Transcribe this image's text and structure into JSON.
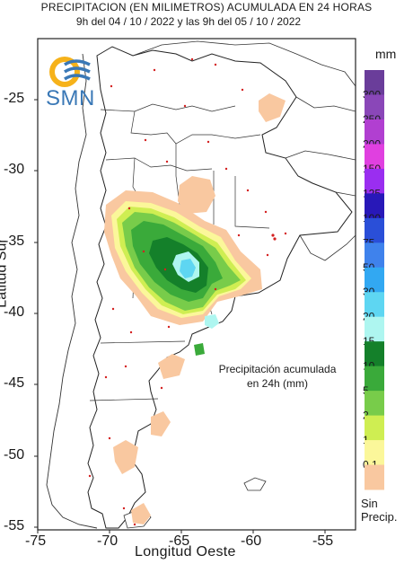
{
  "title_line1": "PRECIPITACION (EN MILIMETROS) ACUMULADA EN 24 HORAS",
  "title_line2": "9h del 04 / 10 / 2022  y las 9h del 05 / 10 / 2022",
  "agency_logo_text": "SMN",
  "annotation_line1": "Precipitación acumulada",
  "annotation_line2": "en 24h (mm)",
  "legend": {
    "unit": "mm",
    "no_precip_line1": "Sin",
    "no_precip_line2": "Precip.",
    "levels": [
      {
        "label": "300",
        "color": "#6a3d9a"
      },
      {
        "label": "250",
        "color": "#8a47b8"
      },
      {
        "label": "200",
        "color": "#b13fd1"
      },
      {
        "label": "150",
        "color": "#e040e0"
      },
      {
        "label": "125",
        "color": "#9a2ef0"
      },
      {
        "label": "100",
        "color": "#2818b8"
      },
      {
        "label": "75",
        "color": "#2a4fd8"
      },
      {
        "label": "50",
        "color": "#3f82ec"
      },
      {
        "label": "30",
        "color": "#32a8f2"
      },
      {
        "label": "20",
        "color": "#5ed6f2"
      },
      {
        "label": "15",
        "color": "#aef6f0"
      },
      {
        "label": "10",
        "color": "#14802a"
      },
      {
        "label": "5",
        "color": "#3aaa3a"
      },
      {
        "label": "2",
        "color": "#78cc4a"
      },
      {
        "label": "1",
        "color": "#cfee52"
      },
      {
        "label": "0.1",
        "color": "#fbf79a"
      },
      {
        "label": "",
        "color": "#f9c8a0"
      }
    ]
  },
  "axes": {
    "ylabel": "Latitud Sur",
    "xlabel": "Longitud Oeste",
    "yticks": [
      "-25",
      "-30",
      "-35",
      "-40",
      "-45",
      "-50",
      "-55"
    ],
    "xticks": [
      "-75",
      "-70",
      "-65",
      "-60",
      "-55"
    ]
  }
}
